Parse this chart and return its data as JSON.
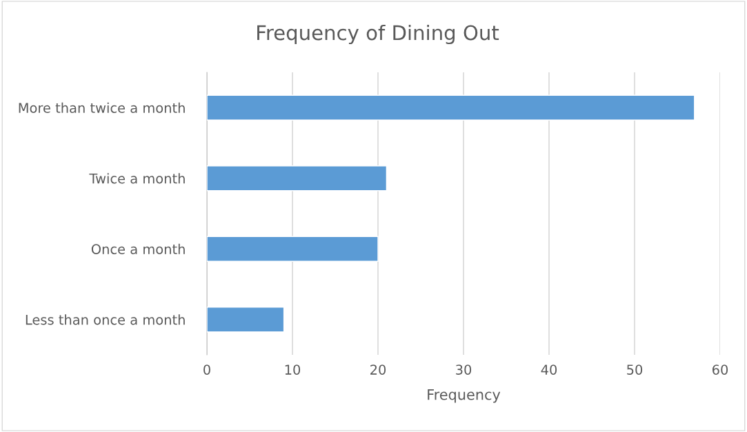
{
  "chart_data": {
    "type": "bar",
    "orientation": "horizontal",
    "title": "Frequency of Dining Out",
    "xlabel": "Frequency",
    "categories": [
      "More than twice a month",
      "Twice a month",
      "Once a month",
      "Less than once a month"
    ],
    "values": [
      57,
      21,
      20,
      9
    ],
    "color": "#5b9bd5",
    "xlim": [
      0,
      60
    ],
    "xticks": [
      0,
      10,
      20,
      30,
      40,
      50,
      60
    ],
    "grid": "x",
    "legend": false
  }
}
